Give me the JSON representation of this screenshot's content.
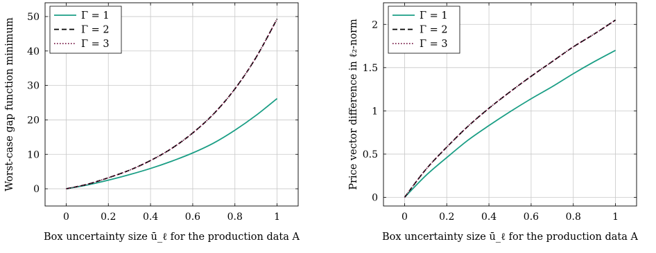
{
  "chart_data": [
    {
      "type": "line",
      "xlabel": "Box uncertainty size ū_ℓ for the production data A",
      "ylabel": "Worst-case gap function minimum",
      "xlim": [
        -0.1,
        1.1
      ],
      "ylim": [
        -5,
        54
      ],
      "xticks": [
        "0",
        "0.2",
        "0.4",
        "0.6",
        "0.8",
        "1"
      ],
      "xtick_values": [
        0,
        0.2,
        0.4,
        0.6,
        0.8,
        1
      ],
      "yticks": [
        "0",
        "10",
        "20",
        "30",
        "40",
        "50"
      ],
      "ytick_values": [
        0,
        10,
        20,
        30,
        40,
        50
      ],
      "grid": true,
      "legend_position": "top-left",
      "x": [
        0,
        0.1,
        0.2,
        0.3,
        0.4,
        0.5,
        0.6,
        0.7,
        0.8,
        0.9,
        1.0
      ],
      "series": [
        {
          "name": "Γ = 1",
          "color": "#1a9e85",
          "style": "solid",
          "values": [
            0,
            1.1,
            2.5,
            4.1,
            5.9,
            8.0,
            10.4,
            13.3,
            17.0,
            21.3,
            26.2
          ]
        },
        {
          "name": "Γ = 2",
          "color": "#000000",
          "style": "dashed",
          "values": [
            0,
            1.3,
            3.2,
            5.4,
            8.2,
            11.7,
            16.2,
            21.8,
            29.0,
            38.1,
            49.3
          ]
        },
        {
          "name": "Γ = 3",
          "color": "#7a1f4a",
          "style": "dotted",
          "values": [
            0,
            1.3,
            3.2,
            5.4,
            8.2,
            11.7,
            16.2,
            21.8,
            29.0,
            38.1,
            49.3
          ]
        }
      ]
    },
    {
      "type": "line",
      "xlabel": "Box uncertainty size ū_ℓ for the production data A",
      "ylabel": "Price vector difference in ℓ₂-norm",
      "xlim": [
        -0.1,
        1.1
      ],
      "ylim": [
        -0.1,
        2.25
      ],
      "xticks": [
        "0",
        "0.2",
        "0.4",
        "0.6",
        "0.8",
        "1"
      ],
      "xtick_values": [
        0,
        0.2,
        0.4,
        0.6,
        0.8,
        1
      ],
      "yticks": [
        "0",
        "0.5",
        "1",
        "1.5",
        "2"
      ],
      "ytick_values": [
        0,
        0.5,
        1,
        1.5,
        2
      ],
      "grid": true,
      "legend_position": "top-left",
      "x": [
        0,
        0.1,
        0.2,
        0.3,
        0.4,
        0.5,
        0.6,
        0.7,
        0.8,
        0.9,
        1.0
      ],
      "series": [
        {
          "name": "Γ = 1",
          "color": "#1a9e85",
          "style": "solid",
          "values": [
            0,
            0.25,
            0.46,
            0.66,
            0.83,
            0.99,
            1.14,
            1.28,
            1.43,
            1.57,
            1.7
          ]
        },
        {
          "name": "Γ = 2",
          "color": "#000000",
          "style": "dashed",
          "values": [
            0,
            0.32,
            0.58,
            0.82,
            1.03,
            1.22,
            1.4,
            1.57,
            1.74,
            1.89,
            2.05
          ]
        },
        {
          "name": "Γ = 3",
          "color": "#7a1f4a",
          "style": "dotted",
          "values": [
            0,
            0.32,
            0.58,
            0.82,
            1.03,
            1.22,
            1.4,
            1.57,
            1.74,
            1.89,
            2.05
          ]
        }
      ]
    }
  ]
}
